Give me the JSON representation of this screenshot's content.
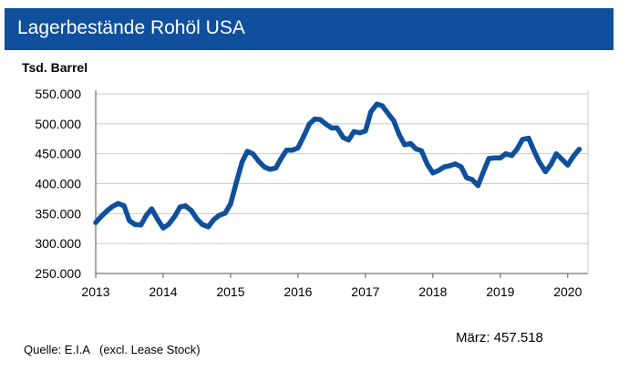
{
  "header": {
    "title": "Lagerbestände Rohöl USA"
  },
  "chart_data": {
    "type": "line",
    "title": "Lagerbestände Rohöl USA",
    "ylabel": "Tsd. Barrel",
    "xlabel": "",
    "ylim": [
      250000,
      550000
    ],
    "xlim": [
      2013,
      2020.3
    ],
    "y_ticks": [
      "550.000",
      "500.000",
      "450.000",
      "400.000",
      "350.000",
      "300.000",
      "250.000"
    ],
    "y_tick_values": [
      550000,
      500000,
      450000,
      400000,
      350000,
      300000,
      250000
    ],
    "x_ticks": [
      "2013",
      "2014",
      "2015",
      "2016",
      "2017",
      "2018",
      "2019",
      "2020"
    ],
    "x_tick_values": [
      2013,
      2014,
      2015,
      2016,
      2017,
      2018,
      2019,
      2020
    ],
    "grid": true,
    "line_color": "#0f4f9c",
    "series": [
      {
        "x": [
          2013.0,
          2013.08,
          2013.17,
          2013.25,
          2013.33,
          2013.42,
          2013.5,
          2013.58,
          2013.67,
          2013.75,
          2013.83,
          2013.92,
          2014.0,
          2014.08,
          2014.17,
          2014.25,
          2014.33,
          2014.42,
          2014.5,
          2014.58,
          2014.67,
          2014.75,
          2014.83,
          2014.92,
          2015.0,
          2015.08,
          2015.17,
          2015.25,
          2015.33,
          2015.42,
          2015.5,
          2015.58,
          2015.67,
          2015.75,
          2015.83,
          2015.92,
          2016.0,
          2016.08,
          2016.17,
          2016.25,
          2016.33,
          2016.42,
          2016.5,
          2016.58,
          2016.67,
          2016.75,
          2016.83,
          2016.92,
          2017.0,
          2017.08,
          2017.17,
          2017.25,
          2017.33,
          2017.42,
          2017.5,
          2017.58,
          2017.67,
          2017.75,
          2017.83,
          2017.92,
          2018.0,
          2018.08,
          2018.17,
          2018.25,
          2018.33,
          2018.42,
          2018.5,
          2018.58,
          2018.67,
          2018.75,
          2018.83,
          2018.92,
          2019.0,
          2019.08,
          2019.17,
          2019.25,
          2019.33,
          2019.42,
          2019.5,
          2019.58,
          2019.67,
          2019.75,
          2019.83,
          2019.92,
          2020.0,
          2020.08,
          2020.17
        ],
        "values": [
          335000,
          345000,
          355000,
          362000,
          367000,
          363000,
          338000,
          332000,
          331000,
          347000,
          358000,
          340000,
          326000,
          332000,
          345000,
          361000,
          363000,
          355000,
          341000,
          332000,
          328000,
          340000,
          347000,
          351000,
          366000,
          400000,
          436000,
          454000,
          450000,
          437000,
          428000,
          424000,
          426000,
          442000,
          456000,
          456000,
          460000,
          478000,
          500000,
          508000,
          507000,
          499000,
          493000,
          493000,
          477000,
          473000,
          487000,
          485000,
          488000,
          520000,
          533000,
          530000,
          518000,
          505000,
          482000,
          465000,
          467000,
          458000,
          455000,
          432000,
          418000,
          422000,
          428000,
          430000,
          433000,
          428000,
          410000,
          407000,
          397000,
          420000,
          442000,
          443000,
          443000,
          450000,
          447000,
          458000,
          474000,
          476000,
          455000,
          436000,
          420000,
          432000,
          450000,
          440000,
          431000,
          445000,
          457518
        ]
      }
    ]
  },
  "footer": {
    "last_value_label": "März:  457.518",
    "source": "Quelle: E.I.A",
    "source_note": "(excl. Lease Stock)"
  }
}
